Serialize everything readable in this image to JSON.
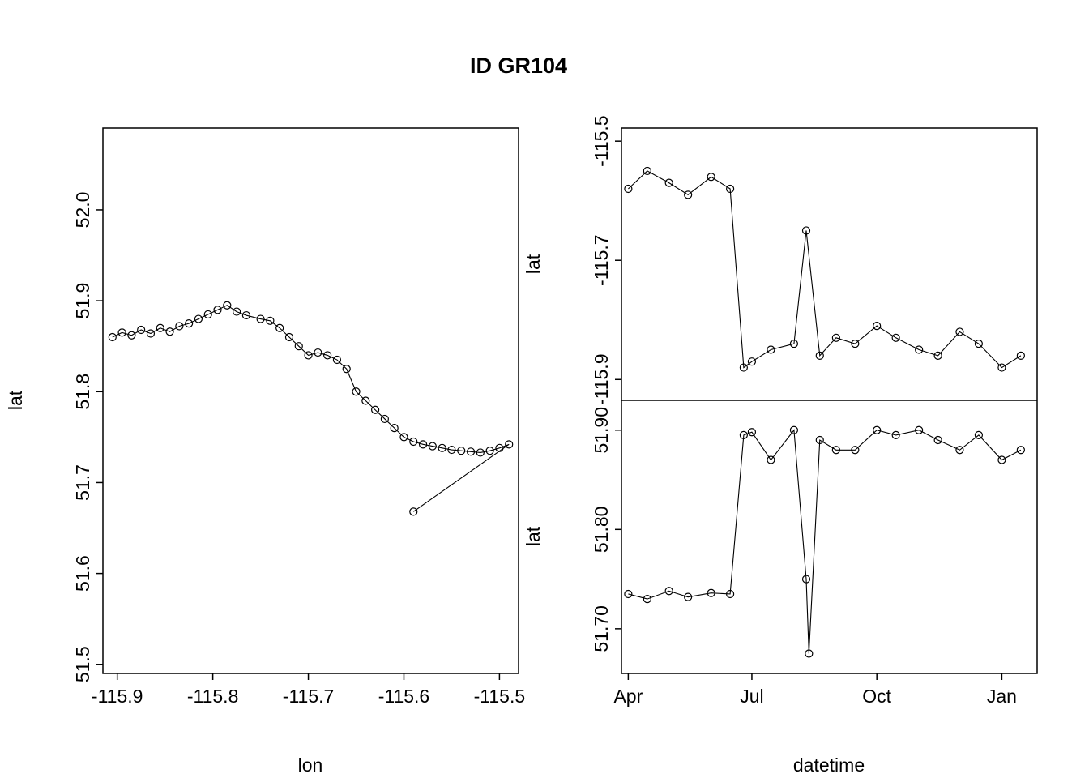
{
  "figure": {
    "title": "ID GR104"
  },
  "chart_data": [
    {
      "type": "line",
      "panel": "left",
      "xlabel": "lon",
      "ylabel": "lat",
      "xlim": [
        -115.915,
        -115.48
      ],
      "ylim": [
        51.49,
        52.09
      ],
      "xticks": [
        -115.9,
        -115.8,
        -115.7,
        -115.6,
        -115.5
      ],
      "xtick_labels": [
        "-115.9",
        "-115.8",
        "-115.7",
        "-115.6",
        "-115.5"
      ],
      "yticks": [
        51.5,
        51.6,
        51.7,
        51.8,
        51.9,
        52.0
      ],
      "ytick_labels": [
        "51.5",
        "51.6",
        "51.7",
        "51.8",
        "51.9",
        "52.0"
      ],
      "points": [
        [
          -115.905,
          51.86
        ],
        [
          -115.895,
          51.865
        ],
        [
          -115.885,
          51.862
        ],
        [
          -115.875,
          51.868
        ],
        [
          -115.865,
          51.864
        ],
        [
          -115.855,
          51.87
        ],
        [
          -115.845,
          51.866
        ],
        [
          -115.835,
          51.872
        ],
        [
          -115.825,
          51.875
        ],
        [
          -115.815,
          51.88
        ],
        [
          -115.805,
          51.885
        ],
        [
          -115.795,
          51.89
        ],
        [
          -115.785,
          51.895
        ],
        [
          -115.775,
          51.888
        ],
        [
          -115.765,
          51.884
        ],
        [
          -115.75,
          51.88
        ],
        [
          -115.74,
          51.878
        ],
        [
          -115.73,
          51.87
        ],
        [
          -115.72,
          51.86
        ],
        [
          -115.71,
          51.85
        ],
        [
          -115.7,
          51.84
        ],
        [
          -115.69,
          51.843
        ],
        [
          -115.68,
          51.84
        ],
        [
          -115.67,
          51.835
        ],
        [
          -115.66,
          51.825
        ],
        [
          -115.65,
          51.8
        ],
        [
          -115.64,
          51.79
        ],
        [
          -115.63,
          51.78
        ],
        [
          -115.62,
          51.77
        ],
        [
          -115.61,
          51.76
        ],
        [
          -115.6,
          51.75
        ],
        [
          -115.59,
          51.745
        ],
        [
          -115.58,
          51.742
        ],
        [
          -115.57,
          51.74
        ],
        [
          -115.56,
          51.738
        ],
        [
          -115.55,
          51.736
        ],
        [
          -115.54,
          51.735
        ],
        [
          -115.53,
          51.734
        ],
        [
          -115.52,
          51.733
        ],
        [
          -115.51,
          51.735
        ],
        [
          -115.5,
          51.738
        ],
        [
          -115.49,
          51.742
        ],
        [
          -115.59,
          51.668
        ]
      ]
    },
    {
      "type": "line",
      "panel": "right-top",
      "xlabel": "",
      "ylabel": "lat",
      "xtype": "date",
      "xlim": [
        "2023-03-27",
        "2024-01-27"
      ],
      "ylim": [
        -115.935,
        -115.478
      ],
      "yticks": [
        -115.5,
        -115.7,
        -115.9
      ],
      "ytick_labels": [
        "-115.5",
        "-115.7",
        "-115.9"
      ],
      "x": [
        "2023-04-01",
        "2023-04-15",
        "2023-05-01",
        "2023-05-15",
        "2023-06-01",
        "2023-06-15",
        "2023-06-25",
        "2023-07-01",
        "2023-07-15",
        "2023-08-01",
        "2023-08-10",
        "2023-08-20",
        "2023-09-01",
        "2023-09-15",
        "2023-10-01",
        "2023-10-15",
        "2023-11-01",
        "2023-11-15",
        "2023-12-01",
        "2023-12-15",
        "2024-01-01",
        "2024-01-15"
      ],
      "y": [
        -115.58,
        -115.55,
        -115.57,
        -115.59,
        -115.56,
        -115.58,
        -115.88,
        -115.87,
        -115.85,
        -115.84,
        -115.65,
        -115.86,
        -115.83,
        -115.84,
        -115.81,
        -115.83,
        -115.85,
        -115.86,
        -115.82,
        -115.84,
        -115.88,
        -115.86
      ]
    },
    {
      "type": "line",
      "panel": "right-bottom",
      "xlabel": "datetime",
      "ylabel": "lat",
      "xtype": "date",
      "xlim": [
        "2023-03-27",
        "2024-01-27"
      ],
      "ylim": [
        51.655,
        51.93
      ],
      "xticks": [
        "2023-04-01",
        "2023-07-01",
        "2023-10-01",
        "2024-01-01"
      ],
      "xtick_labels": [
        "Apr",
        "Jul",
        "Oct",
        "Jan"
      ],
      "yticks": [
        51.7,
        51.8,
        51.9
      ],
      "ytick_labels": [
        "51.70",
        "51.80",
        "51.90"
      ],
      "x": [
        "2023-04-01",
        "2023-04-15",
        "2023-05-01",
        "2023-05-15",
        "2023-06-01",
        "2023-06-15",
        "2023-06-25",
        "2023-07-01",
        "2023-07-15",
        "2023-08-01",
        "2023-08-10",
        "2023-08-12",
        "2023-08-20",
        "2023-09-01",
        "2023-09-15",
        "2023-10-01",
        "2023-10-15",
        "2023-11-01",
        "2023-11-15",
        "2023-12-01",
        "2023-12-15",
        "2024-01-01",
        "2024-01-15"
      ],
      "y": [
        51.735,
        51.73,
        51.738,
        51.732,
        51.736,
        51.735,
        51.895,
        51.898,
        51.87,
        51.9,
        51.75,
        51.675,
        51.89,
        51.88,
        51.88,
        51.9,
        51.895,
        51.9,
        51.89,
        51.88,
        51.895,
        51.87,
        51.88
      ]
    }
  ]
}
